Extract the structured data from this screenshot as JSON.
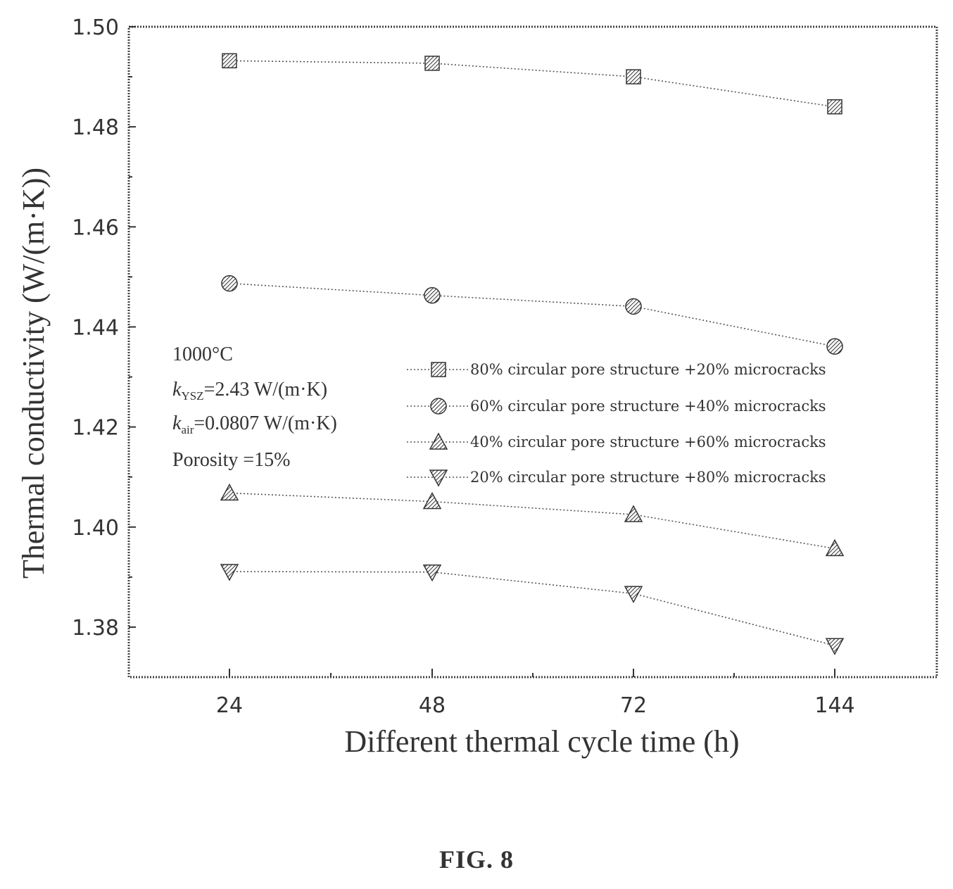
{
  "chart_data": {
    "type": "line",
    "categories": [
      "24",
      "48",
      "72",
      "144"
    ],
    "xlabel": "Different thermal cycle time (h)",
    "ylabel": "Thermal conductivity (W/(m·K))",
    "ylim": [
      1.37,
      1.5
    ],
    "yticks": [
      "1.38",
      "1.40",
      "1.42",
      "1.44",
      "1.46",
      "1.48",
      "1.50"
    ],
    "grid": false,
    "legend_position": "right",
    "series": [
      {
        "name": "80% circular pore structure +20% microcracks",
        "values": [
          1.4932,
          1.4927,
          1.49,
          1.484
        ],
        "marker": "square"
      },
      {
        "name": "60% circular pore structure +40% microcracks",
        "values": [
          1.4487,
          1.4463,
          1.4441,
          1.4361
        ],
        "marker": "circle"
      },
      {
        "name": "40% circular pore structure +60% microcracks",
        "values": [
          1.4068,
          1.4051,
          1.4025,
          1.3957
        ],
        "marker": "triangle-up"
      },
      {
        "name": "20% circular pore structure +80% microcracks",
        "values": [
          1.3911,
          1.391,
          1.3867,
          1.3763
        ],
        "marker": "triangle-down"
      }
    ],
    "annotations": [
      "1000°C",
      "=2.43 W/(m·K)",
      "=0.0807 W/(m·K)",
      "Porosity =15%"
    ],
    "annotation_symbols": [
      "k",
      "YSZ",
      "k",
      "air"
    ]
  },
  "caption": "FIG. 8",
  "colors": {
    "ink": "#333333",
    "line": "#555555"
  }
}
